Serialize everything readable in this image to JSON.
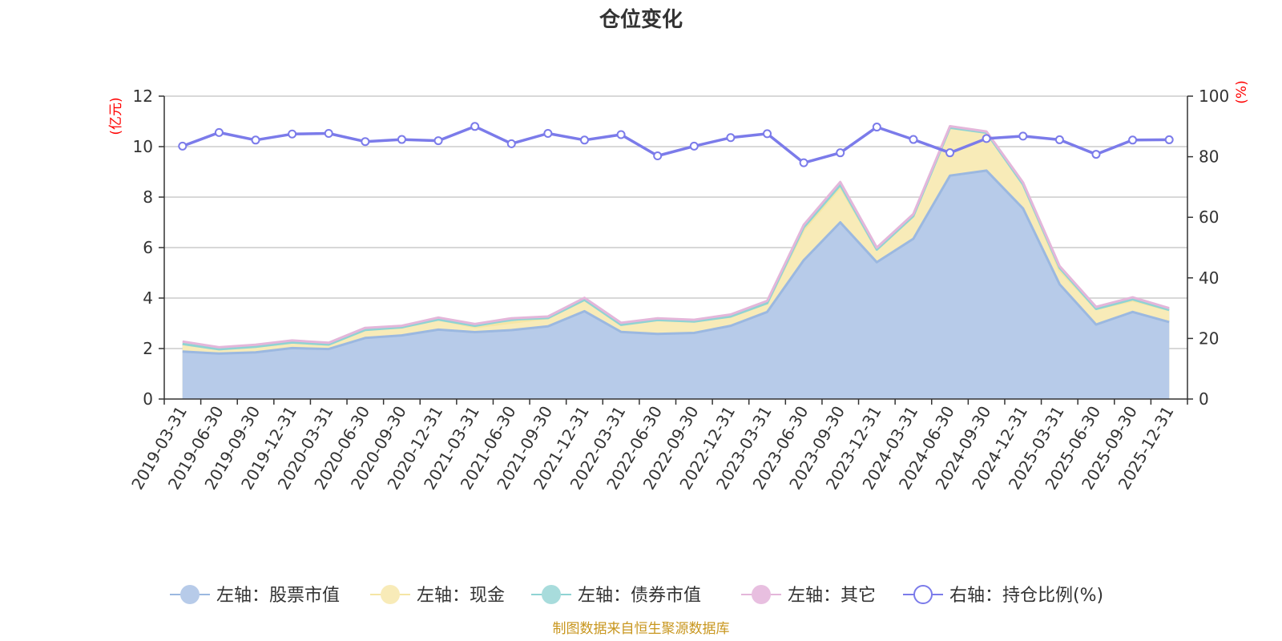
{
  "chart_data": {
    "type": "area",
    "title": "仓位变化",
    "left_axis_unit": "(亿元)",
    "right_axis_unit": "(%)",
    "ylim_left": [
      0,
      12
    ],
    "yticks_left": [
      0,
      2,
      4,
      6,
      8,
      10,
      12
    ],
    "ylim_right": [
      0,
      100
    ],
    "yticks_right": [
      0,
      20,
      40,
      60,
      80,
      100
    ],
    "grid": true,
    "legend_position": "bottom",
    "categories": [
      "2019-03-31",
      "2019-06-30",
      "2019-09-30",
      "2019-12-31",
      "2020-03-31",
      "2020-06-30",
      "2020-09-30",
      "2020-12-31",
      "2021-03-31",
      "2021-06-30",
      "2021-09-30",
      "2021-12-31",
      "2022-03-31",
      "2022-06-30",
      "2022-09-30",
      "2022-12-31",
      "2023-03-31",
      "2023-06-30",
      "2023-09-30",
      "2023-12-31",
      "2024-03-31",
      "2024-06-30",
      "2024-09-30",
      "2024-12-31",
      "2025-03-31",
      "2025-06-30",
      "2025-09-30",
      "2025-12-31"
    ],
    "series": [
      {
        "name": "左轴：股票市值",
        "axis": "left",
        "color": "#9bb8e0",
        "fill": "#b7cbe9",
        "values": [
          1.88,
          1.8,
          1.85,
          2.02,
          1.98,
          2.42,
          2.52,
          2.75,
          2.65,
          2.73,
          2.88,
          3.48,
          2.66,
          2.58,
          2.62,
          2.9,
          3.45,
          5.5,
          7.0,
          5.42,
          6.35,
          8.85,
          9.05,
          7.55,
          4.55,
          2.95,
          3.45,
          3.05
        ]
      },
      {
        "name": "左轴：现金",
        "axis": "left",
        "color": "#f5e6a5",
        "fill": "#f8ebb8",
        "values": [
          0.3,
          0.17,
          0.22,
          0.22,
          0.18,
          0.32,
          0.32,
          0.4,
          0.2,
          0.3,
          0.33,
          0.45,
          0.28,
          0.55,
          0.45,
          0.37,
          0.35,
          1.2,
          1.4,
          0.5,
          0.9,
          1.9,
          1.5,
          0.95,
          0.55,
          0.62,
          0.45,
          0.48
        ]
      },
      {
        "name": "左轴：债券市值",
        "axis": "left",
        "color": "#8fd3d3",
        "fill": "#a8dcdc",
        "values": [
          0,
          0,
          0,
          0,
          0,
          0,
          0,
          0,
          0.05,
          0.12,
          0,
          0,
          0,
          0,
          0,
          0,
          0,
          0.1,
          0.08,
          0,
          0,
          0,
          0,
          0,
          0.1,
          0,
          0.05,
          0
        ]
      },
      {
        "name": "左轴：其它",
        "axis": "left",
        "color": "#e4b6da",
        "fill": "#e8bfe0",
        "values": [
          0.1,
          0.08,
          0.08,
          0.08,
          0.07,
          0.08,
          0.06,
          0.08,
          0.07,
          0.05,
          0.06,
          0.08,
          0.08,
          0.07,
          0.07,
          0.08,
          0.09,
          0.1,
          0.12,
          0.08,
          0.08,
          0.06,
          0.05,
          0.08,
          0.07,
          0.08,
          0.08,
          0.07
        ]
      },
      {
        "name": "右轴：持仓比例(%)",
        "axis": "right",
        "color": "#7b7bea",
        "values": [
          83.5,
          88.0,
          85.5,
          87.5,
          87.7,
          85.0,
          85.7,
          85.3,
          90.0,
          84.3,
          87.7,
          85.5,
          87.3,
          80.3,
          83.5,
          86.3,
          87.6,
          78.0,
          81.3,
          89.8,
          85.7,
          81.3,
          86.0,
          86.8,
          85.6,
          80.8,
          85.5,
          85.6
        ]
      }
    ],
    "source_note": "制图数据来自恒生聚源数据库"
  }
}
